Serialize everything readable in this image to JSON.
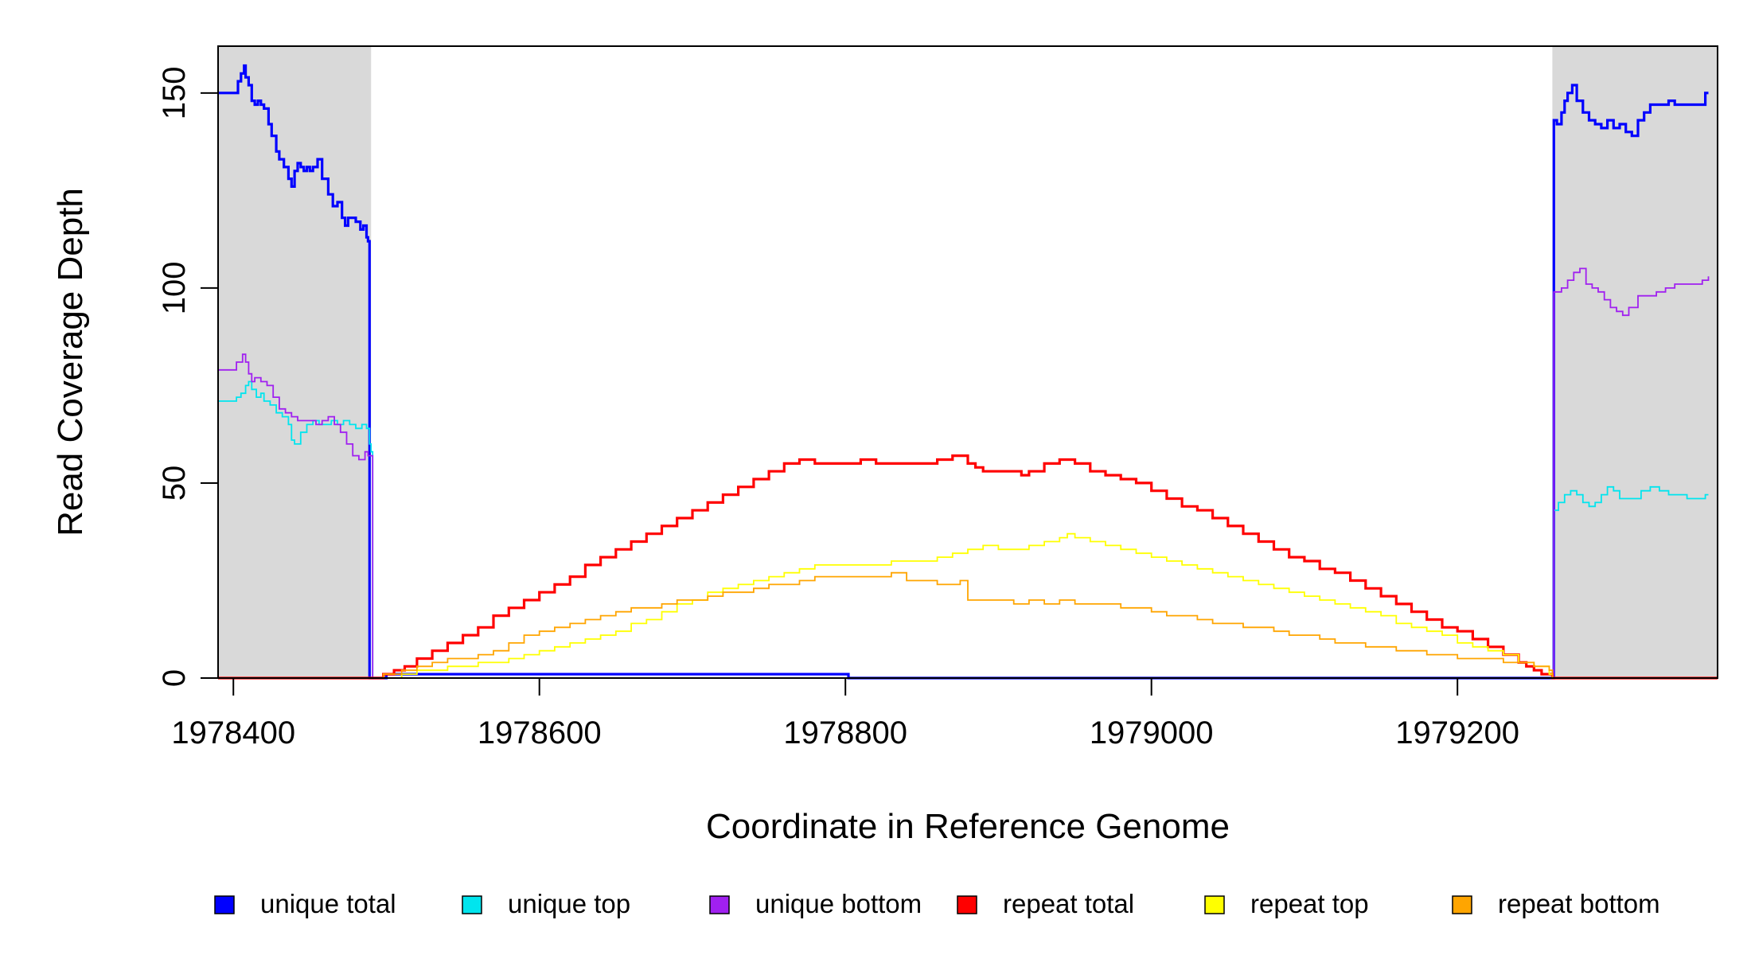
{
  "chart_data": {
    "type": "line",
    "title": "",
    "xlabel": "Coordinate in Reference Genome",
    "ylabel": "Read Coverage Depth",
    "xlim": [
      1978390,
      1979370
    ],
    "ylim": [
      0,
      162
    ],
    "xticks": [
      1978400,
      1978600,
      1978800,
      1979000,
      1979200
    ],
    "yticks": [
      0,
      50,
      100,
      150
    ],
    "grid": false,
    "legend_position": "bottom",
    "shaded_regions": [
      [
        1978390,
        1978490
      ],
      [
        1979262,
        1979370
      ]
    ],
    "series": [
      {
        "name": "unique total",
        "color": "#0000ff",
        "x": [
          1978390,
          1978397,
          1978400,
          1978403,
          1978405,
          1978407,
          1978408,
          1978410,
          1978412,
          1978414,
          1978416,
          1978418,
          1978420,
          1978423,
          1978425,
          1978428,
          1978430,
          1978433,
          1978436,
          1978438,
          1978440,
          1978442,
          1978444,
          1978446,
          1978448,
          1978450,
          1978452,
          1978455,
          1978458,
          1978462,
          1978465,
          1978468,
          1978471,
          1978473,
          1978475,
          1978477,
          1978480,
          1978483,
          1978485,
          1978487,
          1978488,
          1978489,
          1978490,
          1978491,
          1978500,
          1978801,
          1978802,
          1979262,
          1979263,
          1979265,
          1979268,
          1979270,
          1979272,
          1979275,
          1979278,
          1979282,
          1979286,
          1979290,
          1979294,
          1979298,
          1979302,
          1979306,
          1979310,
          1979314,
          1979318,
          1979322,
          1979326,
          1979330,
          1979334,
          1979338,
          1979342,
          1979346,
          1979352,
          1979358,
          1979362,
          1979364
        ],
        "y": [
          150,
          150,
          150,
          153,
          155,
          157,
          154,
          152,
          148,
          147,
          148,
          147,
          146,
          142,
          139,
          135,
          133,
          131,
          128,
          126,
          130,
          132,
          131,
          130,
          131,
          130,
          131,
          133,
          128,
          124,
          121,
          122,
          118,
          116,
          118,
          118,
          117,
          115,
          116,
          113,
          112,
          0,
          0,
          0,
          1,
          1,
          0,
          0,
          143,
          142,
          145,
          148,
          150,
          152,
          148,
          145,
          143,
          142,
          141,
          143,
          141,
          142,
          140,
          139,
          143,
          145,
          147,
          147,
          147,
          148,
          147,
          147,
          147,
          147,
          150,
          150
        ]
      },
      {
        "name": "unique top",
        "color": "#00e5ee",
        "x": [
          1978390,
          1978398,
          1978402,
          1978405,
          1978408,
          1978410,
          1978412,
          1978415,
          1978418,
          1978420,
          1978424,
          1978428,
          1978432,
          1978436,
          1978438,
          1978440,
          1978444,
          1978448,
          1978452,
          1978456,
          1978460,
          1978464,
          1978468,
          1978472,
          1978476,
          1978480,
          1978484,
          1978487,
          1978489,
          1978490,
          1978491,
          1979262,
          1979263,
          1979266,
          1979270,
          1979274,
          1979278,
          1979282,
          1979286,
          1979290,
          1979294,
          1979298,
          1979302,
          1979306,
          1979310,
          1979314,
          1979320,
          1979326,
          1979332,
          1979338,
          1979344,
          1979350,
          1979356,
          1979362,
          1979364
        ],
        "y": [
          71,
          71,
          72,
          73,
          75,
          76,
          74,
          72,
          73,
          71,
          70,
          68,
          67,
          65,
          61,
          60,
          63,
          65,
          66,
          65,
          65,
          66,
          65,
          66,
          65,
          64,
          65,
          64,
          60,
          58,
          0,
          0,
          43,
          45,
          47,
          48,
          47,
          45,
          44,
          45,
          47,
          49,
          48,
          46,
          46,
          46,
          48,
          49,
          48,
          47,
          47,
          46,
          46,
          47,
          47
        ]
      },
      {
        "name": "unique bottom",
        "color": "#a020f0",
        "x": [
          1978390,
          1978398,
          1978402,
          1978406,
          1978408,
          1978410,
          1978412,
          1978414,
          1978418,
          1978422,
          1978426,
          1978430,
          1978434,
          1978438,
          1978442,
          1978446,
          1978450,
          1978454,
          1978458,
          1978462,
          1978466,
          1978470,
          1978474,
          1978478,
          1978482,
          1978486,
          1978488,
          1978490,
          1978491,
          1979262,
          1979263,
          1979268,
          1979272,
          1979276,
          1979280,
          1979284,
          1979288,
          1979292,
          1979296,
          1979300,
          1979304,
          1979308,
          1979312,
          1979318,
          1979324,
          1979330,
          1979336,
          1979342,
          1979348,
          1979354,
          1979360,
          1979364
        ],
        "y": [
          79,
          79,
          81,
          83,
          81,
          78,
          76,
          77,
          76,
          75,
          72,
          69,
          68,
          67,
          66,
          66,
          66,
          65,
          66,
          67,
          65,
          63,
          60,
          57,
          56,
          58,
          57,
          57,
          0,
          0,
          99,
          100,
          102,
          104,
          105,
          101,
          100,
          99,
          97,
          95,
          94,
          93,
          95,
          98,
          98,
          99,
          100,
          101,
          101,
          101,
          102,
          103
        ]
      },
      {
        "name": "repeat total",
        "color": "#ff0000",
        "x": [
          1978390,
          1978490,
          1978498,
          1978505,
          1978512,
          1978520,
          1978530,
          1978540,
          1978550,
          1978560,
          1978570,
          1978580,
          1978590,
          1978600,
          1978610,
          1978620,
          1978630,
          1978640,
          1978650,
          1978660,
          1978670,
          1978680,
          1978690,
          1978700,
          1978710,
          1978720,
          1978730,
          1978740,
          1978750,
          1978760,
          1978770,
          1978780,
          1978790,
          1978800,
          1978810,
          1978820,
          1978830,
          1978840,
          1978850,
          1978860,
          1978870,
          1978875,
          1978880,
          1978885,
          1978890,
          1978900,
          1978910,
          1978915,
          1978920,
          1978930,
          1978940,
          1978945,
          1978950,
          1978960,
          1978970,
          1978980,
          1978990,
          1979000,
          1979010,
          1979020,
          1979030,
          1979040,
          1979050,
          1979060,
          1979070,
          1979080,
          1979090,
          1979100,
          1979110,
          1979120,
          1979130,
          1979140,
          1979150,
          1979160,
          1979170,
          1979180,
          1979190,
          1979200,
          1979210,
          1979220,
          1979230,
          1979240,
          1979245,
          1979250,
          1979255,
          1979260,
          1979262,
          1979370
        ],
        "y": [
          0,
          0,
          1,
          2,
          3,
          5,
          7,
          9,
          11,
          13,
          16,
          18,
          20,
          22,
          24,
          26,
          29,
          31,
          33,
          35,
          37,
          39,
          41,
          43,
          45,
          47,
          49,
          51,
          53,
          55,
          56,
          55,
          55,
          55,
          56,
          55,
          55,
          55,
          55,
          56,
          57,
          57,
          55,
          54,
          53,
          53,
          53,
          52,
          53,
          55,
          56,
          56,
          55,
          53,
          52,
          51,
          50,
          48,
          46,
          44,
          43,
          41,
          39,
          37,
          35,
          33,
          31,
          30,
          28,
          27,
          25,
          23,
          21,
          19,
          17,
          15,
          13,
          12,
          10,
          8,
          6,
          4,
          3,
          2,
          1,
          1,
          0,
          0
        ]
      },
      {
        "name": "repeat top",
        "color": "#ffff00",
        "x": [
          1978390,
          1978490,
          1978498,
          1978510,
          1978520,
          1978530,
          1978540,
          1978550,
          1978560,
          1978570,
          1978580,
          1978590,
          1978600,
          1978610,
          1978620,
          1978630,
          1978640,
          1978650,
          1978660,
          1978670,
          1978680,
          1978690,
          1978700,
          1978710,
          1978720,
          1978730,
          1978740,
          1978750,
          1978760,
          1978770,
          1978780,
          1978790,
          1978800,
          1978810,
          1978820,
          1978830,
          1978840,
          1978850,
          1978860,
          1978870,
          1978880,
          1978890,
          1978900,
          1978910,
          1978920,
          1978930,
          1978940,
          1978945,
          1978950,
          1978960,
          1978970,
          1978980,
          1978990,
          1979000,
          1979010,
          1979020,
          1979030,
          1979040,
          1979050,
          1979060,
          1979070,
          1979080,
          1979090,
          1979100,
          1979110,
          1979120,
          1979130,
          1979140,
          1979150,
          1979160,
          1979170,
          1979180,
          1979190,
          1979200,
          1979210,
          1979220,
          1979230,
          1979240,
          1979250,
          1979260,
          1979262,
          1979370
        ],
        "y": [
          0,
          0,
          0,
          1,
          2,
          2,
          3,
          3,
          4,
          4,
          5,
          6,
          7,
          8,
          9,
          10,
          11,
          12,
          14,
          15,
          17,
          19,
          20,
          22,
          23,
          24,
          25,
          26,
          27,
          28,
          29,
          29,
          29,
          29,
          29,
          30,
          30,
          30,
          31,
          32,
          33,
          34,
          33,
          33,
          34,
          35,
          36,
          37,
          36,
          35,
          34,
          33,
          32,
          31,
          30,
          29,
          28,
          27,
          26,
          25,
          24,
          23,
          22,
          21,
          20,
          19,
          18,
          17,
          16,
          14,
          13,
          12,
          11,
          9,
          8,
          7,
          6,
          4,
          3,
          1,
          0,
          0
        ]
      },
      {
        "name": "repeat bottom",
        "color": "#ffa500",
        "x": [
          1978390,
          1978490,
          1978498,
          1978510,
          1978520,
          1978530,
          1978540,
          1978550,
          1978560,
          1978570,
          1978580,
          1978590,
          1978600,
          1978610,
          1978620,
          1978630,
          1978640,
          1978650,
          1978660,
          1978670,
          1978680,
          1978690,
          1978700,
          1978710,
          1978720,
          1978730,
          1978740,
          1978750,
          1978760,
          1978770,
          1978780,
          1978790,
          1978800,
          1978810,
          1978820,
          1978830,
          1978840,
          1978850,
          1978860,
          1978870,
          1978875,
          1978880,
          1978890,
          1978900,
          1978910,
          1978920,
          1978930,
          1978940,
          1978950,
          1978960,
          1978970,
          1978980,
          1978990,
          1979000,
          1979010,
          1979020,
          1979030,
          1979040,
          1979050,
          1979060,
          1979070,
          1979080,
          1979090,
          1979100,
          1979110,
          1979120,
          1979130,
          1979140,
          1979150,
          1979160,
          1979170,
          1979180,
          1979190,
          1979200,
          1979210,
          1979220,
          1979230,
          1979240,
          1979250,
          1979260,
          1979262,
          1979370
        ],
        "y": [
          0,
          0,
          1,
          2,
          3,
          4,
          5,
          5,
          6,
          7,
          9,
          11,
          12,
          13,
          14,
          15,
          16,
          17,
          18,
          18,
          19,
          20,
          20,
          21,
          22,
          22,
          23,
          24,
          24,
          25,
          26,
          26,
          26,
          26,
          26,
          27,
          25,
          25,
          24,
          24,
          25,
          20,
          20,
          20,
          19,
          20,
          19,
          20,
          19,
          19,
          19,
          18,
          18,
          17,
          16,
          16,
          15,
          14,
          14,
          13,
          13,
          12,
          11,
          11,
          10,
          9,
          9,
          8,
          8,
          7,
          7,
          6,
          6,
          5,
          5,
          5,
          4,
          4,
          3,
          2,
          0,
          0
        ]
      }
    ]
  },
  "legend": {
    "items": [
      {
        "label": "unique total",
        "color": "#0000ff"
      },
      {
        "label": "unique top",
        "color": "#00e5ee"
      },
      {
        "label": "unique bottom",
        "color": "#a020f0"
      },
      {
        "label": "repeat total",
        "color": "#ff0000"
      },
      {
        "label": "repeat top",
        "color": "#ffff00"
      },
      {
        "label": "repeat bottom",
        "color": "#ffa500"
      }
    ]
  }
}
